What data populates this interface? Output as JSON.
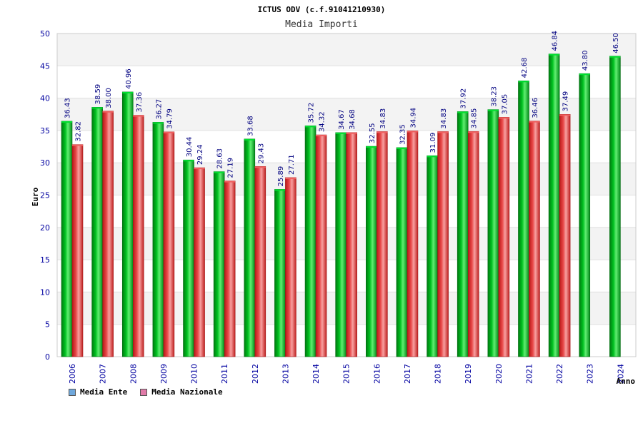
{
  "chart_data": {
    "type": "bar",
    "title": "ICTUS ODV (c.f.91041210930)",
    "subtitle": "Media Importi",
    "xlabel": "Anno",
    "ylabel": "Euro",
    "ylim": [
      0,
      50
    ],
    "yticks": [
      0,
      5,
      10,
      15,
      20,
      25,
      30,
      35,
      40,
      45,
      50
    ],
    "grid": true,
    "legend_position": "bottom-left",
    "categories": [
      "2006",
      "2007",
      "2008",
      "2009",
      "2010",
      "2011",
      "2012",
      "2013",
      "2014",
      "2015",
      "2016",
      "2017",
      "2018",
      "2019",
      "2020",
      "2021",
      "2022",
      "2023",
      "2024"
    ],
    "series": [
      {
        "name": "Media Ente",
        "color": "#00b020",
        "legend_color": "#6fa8dc",
        "values": [
          36.43,
          38.59,
          40.96,
          36.27,
          30.44,
          28.63,
          33.68,
          25.89,
          35.72,
          34.67,
          32.55,
          32.35,
          31.09,
          37.92,
          38.23,
          42.68,
          46.84,
          43.8,
          46.5
        ],
        "labels": [
          "36.43",
          "38.59",
          "40.96",
          "36.27",
          "30.44",
          "28.63",
          "33.68",
          "25.89",
          "35.72",
          "34.67",
          "32.55",
          "32.35",
          "31.09",
          "37.92",
          "38.23",
          "42.68",
          "46.84",
          "43.80",
          "46.50"
        ]
      },
      {
        "name": "Media Nazionale",
        "color": "#e03030",
        "legend_color": "#e07aa8",
        "values": [
          32.82,
          38.0,
          37.36,
          34.79,
          29.24,
          27.19,
          29.43,
          27.71,
          34.32,
          34.68,
          34.83,
          34.94,
          34.83,
          34.85,
          37.05,
          36.46,
          37.49,
          null,
          null
        ],
        "labels": [
          "32.82",
          "38.00",
          "37.36",
          "34.79",
          "29.24",
          "27.19",
          "29.43",
          "27.71",
          "34.32",
          "34.68",
          "34.83",
          "34.94",
          "34.83",
          "34.85",
          "37.05",
          "36.46",
          "37.49",
          null,
          null
        ]
      }
    ]
  }
}
